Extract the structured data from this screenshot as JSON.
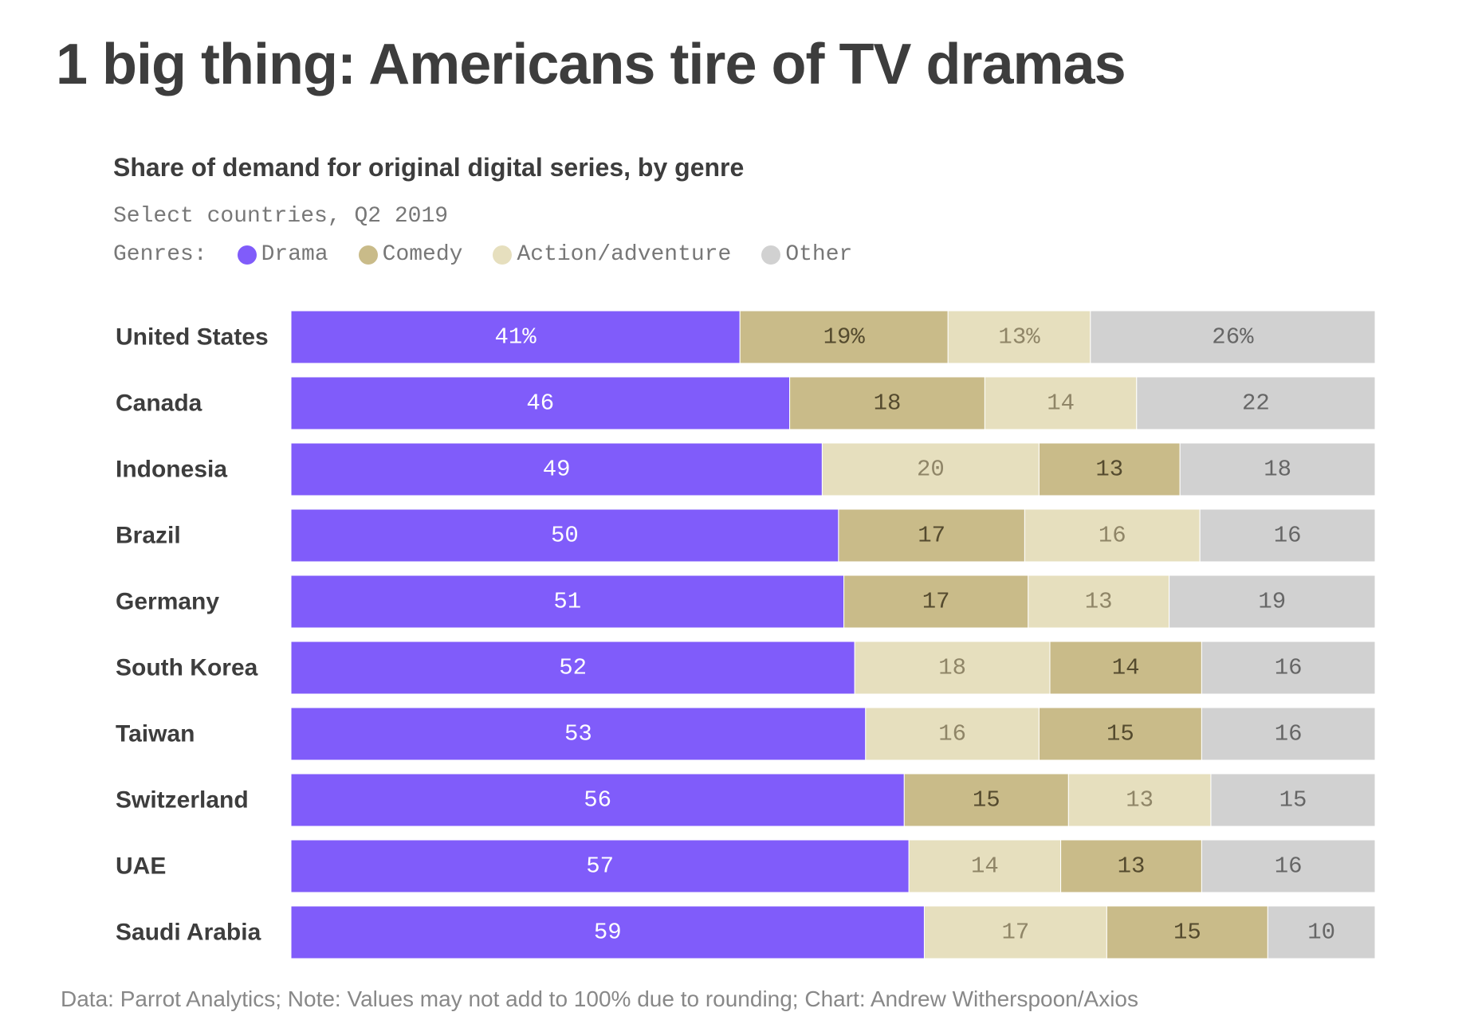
{
  "headline": "1 big thing: Americans tire of TV dramas",
  "chart_data": {
    "type": "bar",
    "orientation": "horizontal",
    "stacked": true,
    "title": "Share of demand for original digital series, by genre",
    "subtitle": "Select countries, Q2 2019",
    "legend_title": "Genres:",
    "legend_placement": "top-left",
    "categories": [
      "United States",
      "Canada",
      "Indonesia",
      "Brazil",
      "Germany",
      "South Korea",
      "Taiwan",
      "Switzerland",
      "UAE",
      "Saudi Arabia"
    ],
    "series": [
      {
        "name": "Drama",
        "color": "#805cfa",
        "label_color": "#ffffff",
        "values": [
          41,
          46,
          49,
          50,
          51,
          52,
          53,
          56,
          57,
          59
        ]
      },
      {
        "name": "Comedy",
        "color": "#c9bb89",
        "label_color": "#544a2e",
        "values": [
          19,
          18,
          13,
          17,
          17,
          14,
          15,
          15,
          13,
          15
        ]
      },
      {
        "name": "Action/adventure",
        "color": "#e6dfbe",
        "label_color": "#8f8567",
        "values": [
          13,
          14,
          20,
          16,
          13,
          18,
          16,
          13,
          14,
          17
        ]
      },
      {
        "name": "Other",
        "color": "#d1d1d1",
        "label_color": "#666666",
        "values": [
          26,
          22,
          18,
          16,
          19,
          16,
          16,
          15,
          16,
          10
        ]
      }
    ],
    "segment_order": [
      [
        "Drama",
        "Comedy",
        "Action/adventure",
        "Other"
      ],
      [
        "Drama",
        "Comedy",
        "Action/adventure",
        "Other"
      ],
      [
        "Drama",
        "Action/adventure",
        "Comedy",
        "Other"
      ],
      [
        "Drama",
        "Comedy",
        "Action/adventure",
        "Other"
      ],
      [
        "Drama",
        "Comedy",
        "Action/adventure",
        "Other"
      ],
      [
        "Drama",
        "Action/adventure",
        "Comedy",
        "Other"
      ],
      [
        "Drama",
        "Action/adventure",
        "Comedy",
        "Other"
      ],
      [
        "Drama",
        "Comedy",
        "Action/adventure",
        "Other"
      ],
      [
        "Drama",
        "Action/adventure",
        "Comedy",
        "Other"
      ],
      [
        "Drama",
        "Action/adventure",
        "Comedy",
        "Other"
      ]
    ],
    "first_row_label_suffix": "%",
    "xlim": [
      0,
      100
    ],
    "grid": false
  },
  "footnote": "Data: Parrot Analytics; Note: Values may not add to 100% due to rounding; Chart: Andrew Witherspoon/Axios"
}
